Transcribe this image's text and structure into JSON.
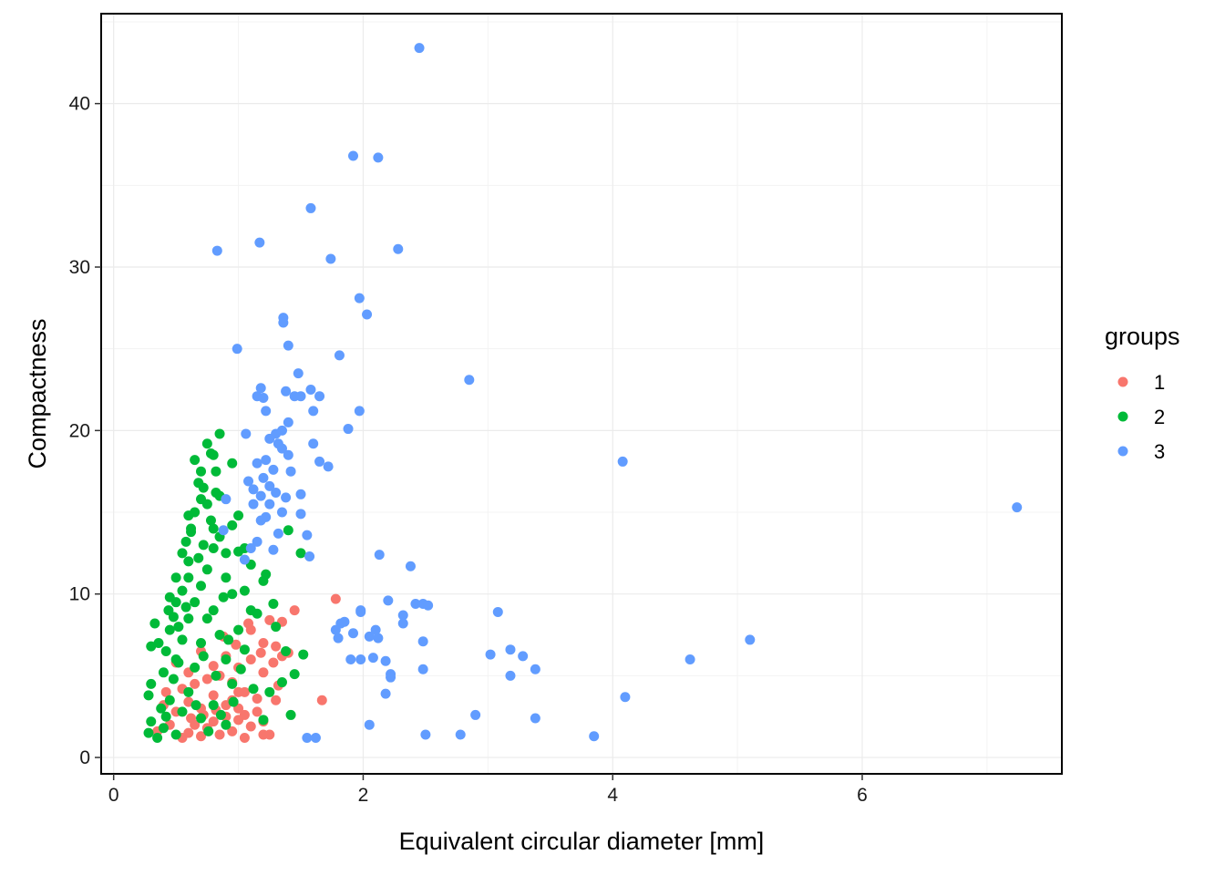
{
  "chart_data": {
    "type": "scatter",
    "title": "",
    "xlabel": "Equivalent circular diameter  [mm]",
    "ylabel": "Compactness",
    "xlim": [
      -0.1,
      7.6
    ],
    "ylim": [
      -1,
      45.5
    ],
    "x_ticks": [
      0,
      2,
      4,
      6
    ],
    "y_ticks": [
      0,
      10,
      20,
      30,
      40
    ],
    "x_tick_labels": [
      "0",
      "2",
      "4",
      "6"
    ],
    "y_tick_labels": [
      "0",
      "10",
      "20",
      "30",
      "40"
    ],
    "grid": true,
    "legend": {
      "title": "groups",
      "placement": "right"
    },
    "series": [
      {
        "name": "1",
        "color": "#F8766D",
        "points": [
          [
            0.55,
            1.2
          ],
          [
            0.6,
            1.5
          ],
          [
            0.65,
            2.0
          ],
          [
            0.7,
            1.3
          ],
          [
            0.75,
            1.8
          ],
          [
            0.8,
            2.2
          ],
          [
            0.85,
            1.4
          ],
          [
            0.9,
            2.5
          ],
          [
            0.95,
            1.6
          ],
          [
            1.0,
            2.3
          ],
          [
            1.05,
            1.2
          ],
          [
            1.1,
            1.9
          ],
          [
            1.2,
            2.2
          ],
          [
            1.25,
            1.4
          ],
          [
            1.3,
            3.5
          ],
          [
            1.0,
            3.0
          ],
          [
            0.9,
            3.2
          ],
          [
            0.8,
            3.8
          ],
          [
            0.7,
            3.0
          ],
          [
            0.6,
            3.4
          ],
          [
            0.5,
            2.8
          ],
          [
            0.45,
            2.0
          ],
          [
            0.55,
            4.2
          ],
          [
            0.65,
            4.5
          ],
          [
            0.75,
            4.8
          ],
          [
            0.85,
            5.0
          ],
          [
            0.95,
            4.6
          ],
          [
            1.05,
            4.0
          ],
          [
            1.15,
            3.6
          ],
          [
            1.2,
            5.2
          ],
          [
            1.1,
            6.0
          ],
          [
            1.0,
            5.5
          ],
          [
            0.9,
            6.2
          ],
          [
            0.8,
            5.6
          ],
          [
            0.7,
            6.5
          ],
          [
            1.2,
            7.0
          ],
          [
            1.3,
            6.8
          ],
          [
            1.35,
            8.3
          ],
          [
            1.25,
            8.4
          ],
          [
            1.4,
            6.4
          ],
          [
            1.45,
            9.0
          ],
          [
            1.35,
            6.2
          ],
          [
            1.1,
            7.8
          ],
          [
            1.0,
            4.0
          ],
          [
            0.95,
            3.5
          ],
          [
            1.05,
            2.6
          ],
          [
            1.15,
            2.8
          ],
          [
            1.2,
            1.4
          ],
          [
            1.78,
            9.7
          ],
          [
            1.67,
            3.5
          ],
          [
            0.6,
            5.2
          ],
          [
            0.5,
            5.8
          ],
          [
            0.4,
            3.2
          ],
          [
            0.35,
            1.6
          ],
          [
            0.42,
            4.0
          ],
          [
            0.72,
            2.6
          ],
          [
            0.82,
            2.9
          ],
          [
            0.62,
            2.4
          ],
          [
            1.28,
            5.8
          ],
          [
            1.32,
            4.4
          ],
          [
            0.98,
            6.9
          ],
          [
            0.88,
            7.4
          ],
          [
            1.08,
            8.2
          ],
          [
            1.18,
            6.4
          ]
        ]
      },
      {
        "name": "2",
        "color": "#00BA38",
        "points": [
          [
            0.28,
            1.5
          ],
          [
            0.3,
            2.2
          ],
          [
            0.28,
            3.8
          ],
          [
            0.3,
            4.5
          ],
          [
            0.3,
            6.8
          ],
          [
            0.33,
            8.2
          ],
          [
            0.35,
            1.2
          ],
          [
            0.38,
            3.0
          ],
          [
            0.4,
            5.2
          ],
          [
            0.42,
            6.5
          ],
          [
            0.45,
            7.8
          ],
          [
            0.45,
            9.8
          ],
          [
            0.5,
            9.5
          ],
          [
            0.5,
            11.0
          ],
          [
            0.52,
            8.0
          ],
          [
            0.55,
            12.5
          ],
          [
            0.55,
            10.2
          ],
          [
            0.58,
            13.2
          ],
          [
            0.6,
            12.0
          ],
          [
            0.6,
            14.8
          ],
          [
            0.62,
            14.0
          ],
          [
            0.65,
            15.0
          ],
          [
            0.65,
            18.2
          ],
          [
            0.68,
            16.8
          ],
          [
            0.7,
            15.8
          ],
          [
            0.7,
            17.5
          ],
          [
            0.72,
            16.5
          ],
          [
            0.75,
            19.2
          ],
          [
            0.78,
            18.6
          ],
          [
            0.8,
            18.5
          ],
          [
            0.82,
            17.5
          ],
          [
            0.85,
            19.8
          ],
          [
            0.82,
            16.2
          ],
          [
            0.85,
            16.0
          ],
          [
            0.78,
            14.5
          ],
          [
            0.72,
            13.0
          ],
          [
            0.68,
            12.2
          ],
          [
            0.75,
            11.5
          ],
          [
            0.8,
            12.8
          ],
          [
            0.85,
            13.5
          ],
          [
            0.9,
            12.5
          ],
          [
            0.95,
            14.2
          ],
          [
            1.0,
            14.8
          ],
          [
            1.0,
            12.6
          ],
          [
            0.95,
            18.0
          ],
          [
            0.9,
            11.0
          ],
          [
            1.05,
            12.8
          ],
          [
            1.1,
            11.8
          ],
          [
            1.05,
            10.2
          ],
          [
            0.95,
            10.0
          ],
          [
            0.88,
            9.8
          ],
          [
            0.65,
            9.5
          ],
          [
            0.6,
            8.5
          ],
          [
            0.55,
            7.2
          ],
          [
            0.5,
            6.0
          ],
          [
            0.48,
            4.8
          ],
          [
            0.45,
            3.5
          ],
          [
            0.42,
            2.5
          ],
          [
            0.4,
            1.8
          ],
          [
            0.5,
            1.4
          ],
          [
            0.55,
            2.8
          ],
          [
            0.6,
            4.0
          ],
          [
            0.65,
            5.5
          ],
          [
            0.7,
            7.0
          ],
          [
            0.75,
            8.5
          ],
          [
            0.8,
            9.0
          ],
          [
            0.85,
            7.5
          ],
          [
            0.9,
            6.0
          ],
          [
            0.95,
            4.5
          ],
          [
            1.0,
            7.8
          ],
          [
            1.05,
            6.6
          ],
          [
            1.1,
            9.0
          ],
          [
            1.15,
            8.8
          ],
          [
            1.2,
            10.8
          ],
          [
            1.22,
            11.2
          ],
          [
            1.28,
            9.4
          ],
          [
            1.3,
            8.0
          ],
          [
            1.38,
            6.5
          ],
          [
            1.42,
            2.6
          ],
          [
            1.45,
            5.1
          ],
          [
            1.5,
            12.5
          ],
          [
            1.52,
            6.3
          ],
          [
            1.4,
            13.9
          ],
          [
            1.35,
            4.6
          ],
          [
            1.25,
            4.0
          ],
          [
            1.2,
            2.3
          ],
          [
            0.7,
            2.4
          ],
          [
            0.8,
            3.2
          ],
          [
            0.9,
            2.0
          ],
          [
            0.6,
            11.0
          ],
          [
            0.7,
            10.5
          ],
          [
            0.75,
            15.5
          ],
          [
            0.8,
            14.0
          ],
          [
            0.62,
            13.8
          ],
          [
            0.58,
            9.2
          ],
          [
            0.52,
            5.8
          ],
          [
            0.48,
            8.6
          ],
          [
            0.72,
            6.2
          ],
          [
            0.82,
            5.0
          ],
          [
            0.92,
            7.2
          ],
          [
            1.02,
            5.4
          ],
          [
            1.12,
            4.2
          ],
          [
            0.36,
            7.0
          ],
          [
            0.44,
            9.0
          ],
          [
            0.66,
            3.2
          ],
          [
            0.76,
            1.6
          ],
          [
            0.86,
            2.6
          ],
          [
            0.96,
            3.4
          ]
        ]
      },
      {
        "name": "3",
        "color": "#619CFF",
        "points": [
          [
            2.45,
            43.4
          ],
          [
            1.92,
            36.8
          ],
          [
            2.12,
            36.7
          ],
          [
            1.58,
            33.6
          ],
          [
            0.83,
            31.0
          ],
          [
            1.17,
            31.5
          ],
          [
            2.28,
            31.1
          ],
          [
            1.74,
            30.5
          ],
          [
            1.97,
            28.1
          ],
          [
            2.03,
            27.1
          ],
          [
            1.36,
            26.9
          ],
          [
            1.36,
            26.6
          ],
          [
            0.99,
            25.0
          ],
          [
            1.4,
            25.2
          ],
          [
            1.81,
            24.6
          ],
          [
            2.85,
            23.1
          ],
          [
            1.48,
            23.5
          ],
          [
            1.15,
            22.1
          ],
          [
            1.18,
            22.6
          ],
          [
            1.2,
            22.0
          ],
          [
            1.38,
            22.4
          ],
          [
            1.45,
            22.1
          ],
          [
            1.5,
            22.1
          ],
          [
            1.58,
            22.5
          ],
          [
            1.65,
            22.1
          ],
          [
            1.22,
            21.2
          ],
          [
            1.6,
            21.2
          ],
          [
            1.97,
            21.2
          ],
          [
            1.88,
            20.1
          ],
          [
            1.4,
            20.5
          ],
          [
            1.35,
            20.0
          ],
          [
            1.3,
            19.8
          ],
          [
            1.25,
            19.5
          ],
          [
            1.32,
            19.2
          ],
          [
            1.6,
            19.2
          ],
          [
            1.06,
            19.8
          ],
          [
            1.35,
            18.9
          ],
          [
            1.4,
            18.5
          ],
          [
            1.22,
            18.2
          ],
          [
            1.15,
            18.0
          ],
          [
            1.28,
            17.6
          ],
          [
            1.42,
            17.5
          ],
          [
            1.65,
            18.1
          ],
          [
            1.72,
            17.8
          ],
          [
            1.2,
            17.1
          ],
          [
            1.25,
            16.6
          ],
          [
            1.08,
            16.9
          ],
          [
            1.12,
            16.4
          ],
          [
            1.3,
            16.2
          ],
          [
            1.18,
            16.0
          ],
          [
            1.25,
            15.5
          ],
          [
            1.38,
            15.9
          ],
          [
            1.5,
            16.1
          ],
          [
            1.12,
            15.5
          ],
          [
            1.35,
            15.0
          ],
          [
            1.22,
            14.7
          ],
          [
            1.18,
            14.5
          ],
          [
            1.5,
            14.9
          ],
          [
            0.9,
            15.8
          ],
          [
            0.88,
            13.9
          ],
          [
            1.32,
            13.7
          ],
          [
            1.55,
            13.6
          ],
          [
            1.15,
            13.2
          ],
          [
            1.1,
            12.8
          ],
          [
            1.28,
            12.7
          ],
          [
            1.57,
            12.3
          ],
          [
            1.05,
            12.1
          ],
          [
            2.13,
            12.4
          ],
          [
            2.38,
            11.7
          ],
          [
            4.08,
            18.1
          ],
          [
            7.24,
            15.3
          ],
          [
            2.2,
            9.6
          ],
          [
            2.42,
            9.4
          ],
          [
            2.48,
            9.4
          ],
          [
            2.52,
            9.3
          ],
          [
            1.98,
            9.0
          ],
          [
            1.98,
            8.9
          ],
          [
            2.32,
            8.7
          ],
          [
            3.08,
            8.9
          ],
          [
            1.82,
            8.2
          ],
          [
            1.85,
            8.3
          ],
          [
            1.78,
            7.8
          ],
          [
            2.32,
            8.2
          ],
          [
            2.1,
            7.8
          ],
          [
            2.05,
            7.4
          ],
          [
            2.12,
            7.3
          ],
          [
            1.8,
            7.3
          ],
          [
            1.92,
            7.6
          ],
          [
            2.48,
            7.1
          ],
          [
            5.1,
            7.2
          ],
          [
            3.18,
            6.6
          ],
          [
            3.02,
            6.3
          ],
          [
            3.28,
            6.2
          ],
          [
            4.62,
            6.0
          ],
          [
            1.9,
            6.0
          ],
          [
            1.98,
            6.0
          ],
          [
            2.08,
            6.1
          ],
          [
            2.18,
            5.9
          ],
          [
            3.38,
            5.4
          ],
          [
            2.48,
            5.4
          ],
          [
            2.22,
            5.1
          ],
          [
            2.22,
            4.9
          ],
          [
            3.18,
            5.0
          ],
          [
            2.18,
            3.9
          ],
          [
            4.1,
            3.7
          ],
          [
            2.9,
            2.6
          ],
          [
            3.38,
            2.4
          ],
          [
            2.05,
            2.0
          ],
          [
            2.5,
            1.4
          ],
          [
            2.78,
            1.4
          ],
          [
            3.85,
            1.3
          ],
          [
            1.55,
            1.2
          ],
          [
            1.62,
            1.2
          ]
        ]
      }
    ]
  }
}
